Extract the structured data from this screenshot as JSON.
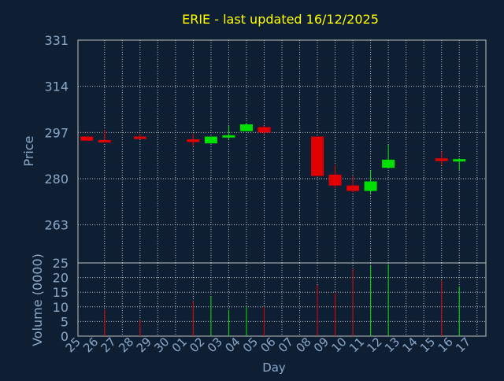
{
  "colors": {
    "background": "#0f1f33",
    "axis_text": "#8aa8c8",
    "title": "#ffff00",
    "grid": "#c0c0c0",
    "frame": "#c0c0c0",
    "up": "#00e000",
    "down": "#e00000"
  },
  "chart_data": [
    {
      "type": "candlestick",
      "title": "ERIE - last updated 16/12/2025",
      "ylabel": "Price",
      "y_ticks": [
        263,
        280,
        297,
        314,
        331
      ],
      "ylim": [
        249,
        331
      ],
      "x_tick_labels": [
        "25",
        "26",
        "27",
        "28",
        "29",
        "30",
        "01",
        "02",
        "03",
        "04",
        "05",
        "06",
        "07",
        "08",
        "09",
        "10",
        "11",
        "12",
        "13",
        "14",
        "15",
        "16",
        "17"
      ],
      "grid": true,
      "candles": [
        {
          "day": "25",
          "open": 295.5,
          "close": 294.0,
          "high": 295.5,
          "low": 294.0
        },
        {
          "day": "26",
          "open": 294.2,
          "close": 293.8,
          "high": 298.0,
          "low": 293.5
        },
        {
          "day": "28",
          "open": 295.5,
          "close": 295.2,
          "high": 296.5,
          "low": 295.0
        },
        {
          "day": "01",
          "open": 294.5,
          "close": 293.5,
          "high": 296.5,
          "low": 292.0
        },
        {
          "day": "02",
          "open": 293.0,
          "close": 295.5,
          "high": 295.5,
          "low": 293.0
        },
        {
          "day": "03",
          "open": 295.5,
          "close": 296.0,
          "high": 299.5,
          "low": 294.5
        },
        {
          "day": "04",
          "open": 297.5,
          "close": 300.0,
          "high": 300.5,
          "low": 297.5
        },
        {
          "day": "05",
          "open": 299.0,
          "close": 297.0,
          "high": 299.5,
          "low": 296.5
        },
        {
          "day": "08",
          "open": 295.5,
          "close": 281.0,
          "high": 295.5,
          "low": 281.0
        },
        {
          "day": "09",
          "open": 281.5,
          "close": 277.5,
          "high": 285.0,
          "low": 276.5
        },
        {
          "day": "10",
          "open": 277.5,
          "close": 275.5,
          "high": 281.0,
          "low": 275.0
        },
        {
          "day": "11",
          "open": 275.5,
          "close": 279.0,
          "high": 283.0,
          "low": 274.5
        },
        {
          "day": "12",
          "open": 284.0,
          "close": 287.0,
          "high": 292.5,
          "low": 284.0
        },
        {
          "day": "15",
          "open": 287.5,
          "close": 286.5,
          "high": 290.0,
          "low": 285.0
        },
        {
          "day": "16",
          "open": 287.0,
          "close": 287.2,
          "high": 287.5,
          "low": 283.0
        }
      ]
    },
    {
      "type": "bar",
      "ylabel": "Volume (0000)",
      "y_ticks": [
        0,
        5,
        10,
        15,
        20,
        25
      ],
      "ylim": [
        0,
        25
      ],
      "xlabel": "Day",
      "volumes": [
        {
          "day": "26",
          "value": 9,
          "direction": "down"
        },
        {
          "day": "28",
          "value": 5.5,
          "direction": "down"
        },
        {
          "day": "01",
          "value": 12,
          "direction": "down"
        },
        {
          "day": "02",
          "value": 13.5,
          "direction": "up"
        },
        {
          "day": "03",
          "value": 9,
          "direction": "up"
        },
        {
          "day": "04",
          "value": 10,
          "direction": "up"
        },
        {
          "day": "05",
          "value": 10,
          "direction": "down"
        },
        {
          "day": "08",
          "value": 17.5,
          "direction": "down"
        },
        {
          "day": "09",
          "value": 14.5,
          "direction": "down"
        },
        {
          "day": "10",
          "value": 23,
          "direction": "down"
        },
        {
          "day": "11",
          "value": 24,
          "direction": "up"
        },
        {
          "day": "12",
          "value": 24.5,
          "direction": "up"
        },
        {
          "day": "15",
          "value": 19,
          "direction": "down"
        },
        {
          "day": "16",
          "value": 17,
          "direction": "up"
        }
      ]
    }
  ]
}
